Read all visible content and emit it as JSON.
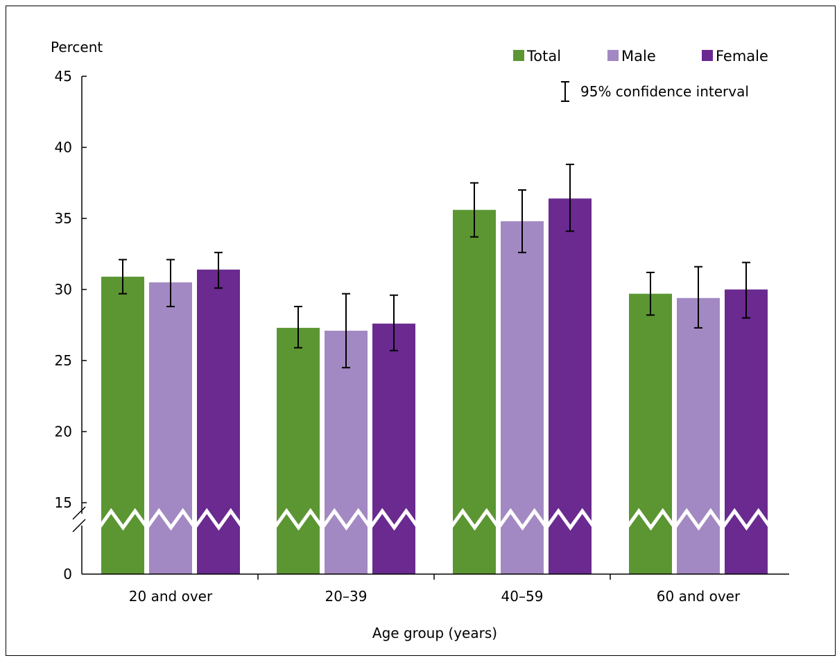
{
  "chart_data": {
    "type": "bar",
    "title": "",
    "xlabel": "Age group (years)",
    "ylabel": "Percent",
    "categories": [
      "20 and over",
      "20–39",
      "40–59",
      "60 and over"
    ],
    "series": [
      {
        "name": "Total",
        "color": "#5b9632",
        "values": [
          30.9,
          27.3,
          35.6,
          29.7
        ],
        "ci_low": [
          29.7,
          25.9,
          33.7,
          28.2
        ],
        "ci_high": [
          32.1,
          28.8,
          37.5,
          31.2
        ]
      },
      {
        "name": "Male",
        "color": "#a389c3",
        "values": [
          30.5,
          27.1,
          34.8,
          29.4
        ],
        "ci_low": [
          28.8,
          24.5,
          32.6,
          27.3
        ],
        "ci_high": [
          32.1,
          29.7,
          37.0,
          31.6
        ]
      },
      {
        "name": "Female",
        "color": "#6a2a90",
        "values": [
          31.4,
          27.6,
          36.4,
          30.0
        ],
        "ci_low": [
          30.1,
          25.7,
          34.1,
          28.0
        ],
        "ci_high": [
          32.6,
          29.6,
          38.8,
          31.9
        ]
      }
    ],
    "ylim": [
      15,
      45
    ],
    "yticks": [
      "45",
      "40",
      "35",
      "30",
      "25",
      "20",
      "15",
      "0"
    ],
    "axis_break": true,
    "grid": false,
    "legend_position": "top-right",
    "ci_legend_label": "95% confidence interval"
  }
}
